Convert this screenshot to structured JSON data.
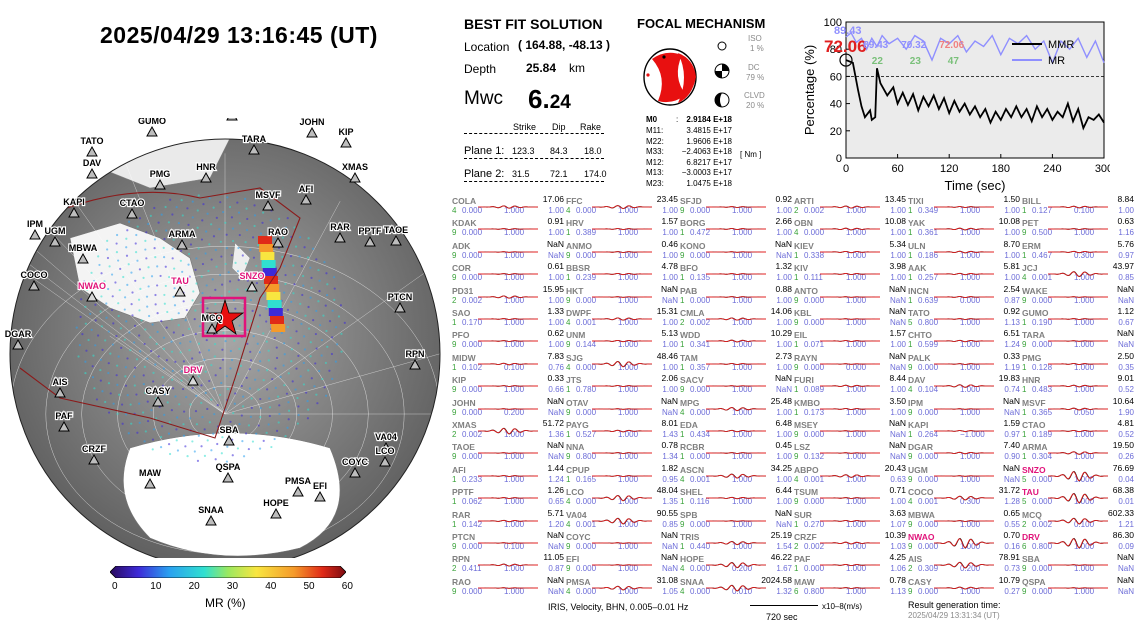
{
  "datetime": "2025/04/29  13:16:45 (UT)",
  "best_fit": {
    "title": "BEST FIT SOLUTION",
    "location_label": "Location",
    "location": "( 164.88,  -48.13 )",
    "depth_label": "Depth",
    "depth": "25.84",
    "depth_unit": "km",
    "mwc_label": "Mwc",
    "mwc_int": "6.",
    "mwc_dec": "24",
    "cols": [
      "Strike",
      "Dip",
      "Rake"
    ],
    "plane1_label": "Plane 1:",
    "plane1": [
      "123.3",
      "84.3",
      "18.0"
    ],
    "plane2_label": "Plane 2:",
    "plane2": [
      "31.5",
      "72.1",
      "174.0"
    ]
  },
  "focal": {
    "title": "FOCAL MECHANISM",
    "iso_label": "ISO",
    "iso": "1 %",
    "dc_label": "DC",
    "dc": "79 %",
    "clvd_label": "CLVD",
    "clvd": "20 %",
    "m0_label": "M0",
    "m0": "2.9184 E+18",
    "moments": [
      [
        "M11:",
        "3.4815 E+17"
      ],
      [
        "M22:",
        "1.9606 E+18"
      ],
      [
        "M33:",
        "−2.4063 E+18"
      ],
      [
        "M12:",
        "6.8217 E+17"
      ],
      [
        "M13:",
        "−3.0003 E+17"
      ],
      [
        "M23:",
        "1.0475 E+18"
      ]
    ],
    "unit": "[ Nm ]"
  },
  "mr_chart": {
    "ylabel": "Percentage (%)",
    "xlabel": "Time (sec)",
    "xticks": [
      "0",
      "60",
      "120",
      "180",
      "240",
      "300"
    ],
    "yticks": [
      "0",
      "20",
      "40",
      "60",
      "80",
      "100"
    ],
    "big_value": "72.06",
    "labels_top": [
      "89.43",
      "70.32",
      "72.06"
    ],
    "labels_top2": [
      "89.43"
    ],
    "labels_green": [
      "22",
      "23",
      "47"
    ],
    "legend": [
      "MMR",
      "MR"
    ],
    "threshold": 60,
    "mmr": [
      [
        0,
        72
      ],
      [
        8,
        70
      ],
      [
        14,
        50
      ],
      [
        18,
        38
      ],
      [
        22,
        30
      ],
      [
        28,
        35
      ],
      [
        30,
        28
      ],
      [
        34,
        30
      ],
      [
        36,
        66
      ],
      [
        40,
        55
      ],
      [
        48,
        46
      ],
      [
        55,
        52
      ],
      [
        60,
        40
      ],
      [
        66,
        48
      ],
      [
        72,
        39
      ],
      [
        78,
        47
      ],
      [
        84,
        35
      ],
      [
        90,
        45
      ],
      [
        96,
        38
      ],
      [
        102,
        46
      ],
      [
        108,
        36
      ],
      [
        114,
        44
      ],
      [
        120,
        33
      ],
      [
        126,
        42
      ],
      [
        132,
        34
      ],
      [
        138,
        40
      ],
      [
        144,
        32
      ],
      [
        150,
        38
      ],
      [
        156,
        30
      ],
      [
        162,
        36
      ],
      [
        168,
        26
      ],
      [
        174,
        34
      ],
      [
        180,
        28
      ],
      [
        186,
        36
      ],
      [
        192,
        30
      ],
      [
        198,
        38
      ],
      [
        204,
        30
      ],
      [
        210,
        36
      ],
      [
        216,
        27
      ],
      [
        222,
        38
      ],
      [
        228,
        30
      ],
      [
        234,
        36
      ],
      [
        240,
        28
      ],
      [
        246,
        34
      ],
      [
        252,
        30
      ],
      [
        258,
        40
      ],
      [
        264,
        27
      ],
      [
        270,
        36
      ],
      [
        276,
        22
      ],
      [
        282,
        30
      ],
      [
        288,
        28
      ],
      [
        294,
        32
      ],
      [
        300,
        26
      ]
    ],
    "mr": [
      [
        0,
        89
      ],
      [
        6,
        92
      ],
      [
        12,
        85
      ],
      [
        18,
        88
      ],
      [
        24,
        80
      ],
      [
        30,
        88
      ],
      [
        36,
        82
      ],
      [
        42,
        90
      ],
      [
        50,
        84
      ],
      [
        60,
        88
      ],
      [
        70,
        80
      ],
      [
        80,
        90
      ],
      [
        90,
        86
      ],
      [
        100,
        72
      ],
      [
        110,
        88
      ],
      [
        120,
        84
      ],
      [
        130,
        90
      ],
      [
        140,
        78
      ],
      [
        150,
        86
      ],
      [
        160,
        82
      ],
      [
        170,
        90
      ],
      [
        180,
        76
      ],
      [
        190,
        88
      ],
      [
        200,
        84
      ],
      [
        210,
        90
      ],
      [
        220,
        80
      ],
      [
        230,
        86
      ],
      [
        240,
        70
      ],
      [
        250,
        86
      ],
      [
        260,
        80
      ],
      [
        270,
        88
      ],
      [
        280,
        74
      ],
      [
        290,
        86
      ],
      [
        300,
        70
      ]
    ]
  },
  "colorbar": {
    "label": "MR (%)",
    "ticks": [
      "0",
      "10",
      "20",
      "30",
      "40",
      "50",
      "60"
    ]
  },
  "footer": {
    "filter": "IRIS,  Velocity,   BHN,  0.005–0.01 Hz",
    "scale": "720 sec",
    "units": "x10–8(m/s)",
    "gen_label": "Result generation time:",
    "gen_time": "2025/04/29  13:31:34 (UT)"
  },
  "globe_stations": [
    [
      "JCJ",
      150,
      118
    ],
    [
      "WAKE",
      232,
      116
    ],
    [
      "MIDW",
      282,
      112
    ],
    [
      "GUMO",
      152,
      132
    ],
    [
      "JOHN",
      312,
      133
    ],
    [
      "KIP",
      346,
      143
    ],
    [
      "TATO",
      92,
      152
    ],
    [
      "TARA",
      254,
      150
    ],
    [
      "DAV",
      92,
      174
    ],
    [
      "XMAS",
      355,
      178
    ],
    [
      "PMG",
      160,
      185
    ],
    [
      "HNR",
      206,
      178
    ],
    [
      "AFI",
      306,
      200
    ],
    [
      "MSVF",
      268,
      206
    ],
    [
      "KAPI",
      74,
      213
    ],
    [
      "CTAO",
      132,
      214
    ],
    [
      "IPM",
      35,
      235
    ],
    [
      "UGM",
      55,
      242
    ],
    [
      "RAR",
      340,
      238
    ],
    [
      "PPTF",
      370,
      242
    ],
    [
      "TAOE",
      396,
      241
    ],
    [
      "MBWA",
      83,
      259
    ],
    [
      "ARMA",
      182,
      245
    ],
    [
      "RAO",
      278,
      243
    ],
    [
      "COCO",
      34,
      286
    ],
    [
      "TAU",
      180,
      292
    ],
    [
      "SNZO",
      252,
      287
    ],
    [
      "NWAO",
      92,
      297
    ],
    [
      "MCQ",
      212,
      329
    ],
    [
      "PTCN",
      400,
      308
    ],
    [
      "DGAR",
      18,
      345
    ],
    [
      "RPN",
      415,
      365
    ],
    [
      "DRV",
      193,
      381
    ],
    [
      "CASY",
      158,
      402
    ],
    [
      "AIS",
      60,
      393
    ],
    [
      "SBA",
      229,
      441
    ],
    [
      "PAF",
      64,
      427
    ],
    [
      "VA04",
      386,
      448
    ],
    [
      "LCO",
      385,
      462
    ],
    [
      "CRZF",
      94,
      460
    ],
    [
      "COYC",
      355,
      473
    ],
    [
      "MAW",
      150,
      484
    ],
    [
      "QSPA",
      228,
      478
    ],
    [
      "PMSA",
      298,
      492
    ],
    [
      "EFI",
      320,
      497
    ],
    [
      "SNAA",
      211,
      521
    ],
    [
      "HOPE",
      276,
      514
    ]
  ],
  "red_stations": [
    "NWAO",
    "TAU",
    "SNZO",
    "DRV"
  ],
  "stations": [
    [
      "COLA",
      "17.06",
      "4",
      "0.000",
      "1.000",
      "1.00"
    ],
    [
      "FFC",
      "23.45",
      "4",
      "0.000",
      "1.000",
      "1.00"
    ],
    [
      "SFJD",
      "0.92",
      "9",
      "0.000",
      "1.000",
      "1.00"
    ],
    [
      "ARTI",
      "13.45",
      "2",
      "0.002",
      "1.000",
      "1.00"
    ],
    [
      "TIXI",
      "1.50",
      "1",
      "0.349",
      "1.000",
      "1.00"
    ],
    [
      "BILL",
      "8.84",
      "1",
      "0.127",
      "0.100",
      "1.00"
    ],
    [
      "KDAK",
      "0.91",
      "9",
      "0.000",
      "1.000",
      "1.00"
    ],
    [
      "HRV",
      "1.57",
      "1",
      "0.389",
      "1.000",
      "1.00"
    ],
    [
      "BORG",
      "2.66",
      "1",
      "0.472",
      "1.000",
      "1.00"
    ],
    [
      "OBN",
      "10.08",
      "4",
      "0.000",
      "1.000",
      "1.00"
    ],
    [
      "YAK",
      "10.08",
      "1",
      "0.361",
      "1.000",
      "1.00"
    ],
    [
      "PET",
      "0.63",
      "9",
      "0.500",
      "1.000",
      "1.16"
    ],
    [
      "ADK",
      "NaN",
      "9",
      "0.000",
      "1.000",
      "NaN"
    ],
    [
      "ANMO",
      "0.46",
      "9",
      "0.000",
      "1.000",
      "1.00"
    ],
    [
      "KONO",
      "NaN",
      "9",
      "0.000",
      "1.000",
      "NaN"
    ],
    [
      "KIEV",
      "5.34",
      "1",
      "0.338",
      "1.000",
      "1.00"
    ],
    [
      "ULN",
      "8.70",
      "1",
      "0.186",
      "1.000",
      "1.00"
    ],
    [
      "ERM",
      "5.76",
      "1",
      "0.467",
      "0.300",
      "0.97"
    ],
    [
      "COR",
      "0.61",
      "9",
      "0.000",
      "1.000",
      "1.00"
    ],
    [
      "BBSR",
      "4.78",
      "1",
      "0.239",
      "1.000",
      "1.00"
    ],
    [
      "BFO",
      "1.32",
      "1",
      "0.135",
      "1.000",
      "1.00"
    ],
    [
      "KIV",
      "3.98",
      "1",
      "0.111",
      "1.000",
      "1.00"
    ],
    [
      "AAK",
      "5.81",
      "1",
      "0.257",
      "1.000",
      "1.00"
    ],
    [
      "JCJ",
      "43.97",
      "4",
      "0.001",
      "1.000",
      "0.85"
    ],
    [
      "PD31",
      "15.95",
      "2",
      "0.002",
      "1.000",
      "1.00"
    ],
    [
      "HKT",
      "NaN",
      "9",
      "0.000",
      "1.000",
      "NaN"
    ],
    [
      "PAB",
      "0.88",
      "1",
      "0.000",
      "1.000",
      "1.00"
    ],
    [
      "ANTO",
      "NaN",
      "9",
      "0.000",
      "1.000",
      "NaN"
    ],
    [
      "INCN",
      "2.54",
      "1",
      "0.639",
      "0.000",
      "0.87"
    ],
    [
      "WAKE",
      "NaN",
      "9",
      "0.000",
      "1.000",
      "NaN"
    ],
    [
      "SAO",
      "1.33",
      "1",
      "0.170",
      "1.000",
      "1.00"
    ],
    [
      "DWPF",
      "15.31",
      "4",
      "0.001",
      "1.000",
      "1.00"
    ],
    [
      "CMLA",
      "14.06",
      "2",
      "0.002",
      "1.000",
      "1.00"
    ],
    [
      "KBL",
      "NaN",
      "9",
      "0.000",
      "1.000",
      "NaN"
    ],
    [
      "TATO",
      "0.92",
      "5",
      "0.800",
      "1.000",
      "1.13"
    ],
    [
      "GUMO",
      "1.12",
      "1",
      "0.190",
      "1.000",
      "0.67"
    ],
    [
      "PFO",
      "0.62",
      "9",
      "0.000",
      "1.000",
      "1.00"
    ],
    [
      "UNM",
      "5.13",
      "9",
      "0.144",
      "1.000",
      "1.00"
    ],
    [
      "WDD",
      "10.29",
      "1",
      "0.341",
      "1.000",
      "1.00"
    ],
    [
      "EIL",
      "1.57",
      "1",
      "0.071",
      "1.000",
      "1.00"
    ],
    [
      "CHTO",
      "6.51",
      "1",
      "0.599",
      "1.000",
      "1.24"
    ],
    [
      "TARA",
      "NaN",
      "9",
      "0.000",
      "1.000",
      "NaN"
    ],
    [
      "MIDW",
      "7.83",
      "1",
      "0.102",
      "0.100",
      "0.76"
    ],
    [
      "SJG",
      "48.46",
      "4",
      "0.000",
      "1.000",
      "1.00"
    ],
    [
      "TAM",
      "2.73",
      "1",
      "0.357",
      "1.000",
      "1.00"
    ],
    [
      "RAYN",
      "NaN",
      "9",
      "0.000",
      "0.000",
      "NaN"
    ],
    [
      "PALK",
      "0.33",
      "9",
      "0.000",
      "1.000",
      "1.19"
    ],
    [
      "PMG",
      "2.50",
      "1",
      "0.128",
      "1.000",
      "0.35"
    ],
    [
      "KIP",
      "0.33",
      "9",
      "0.000",
      "1.000",
      "0.66"
    ],
    [
      "JTS",
      "2.06",
      "1",
      "0.780",
      "1.000",
      "1.00"
    ],
    [
      "SACV",
      "NaN",
      "9",
      "0.000",
      "1.000",
      "NaN"
    ],
    [
      "FURI",
      "8.44",
      "1",
      "0.089",
      "1.000",
      "1.00"
    ],
    [
      "DAV",
      "19.83",
      "4",
      "0.104",
      "1.000",
      "0.74"
    ],
    [
      "HNR",
      "9.01",
      "1",
      "0.483",
      "1.000",
      "0.52"
    ],
    [
      "JOHN",
      "NaN",
      "9",
      "0.000",
      "0.200",
      "NaN"
    ],
    [
      "OTAV",
      "NaN",
      "9",
      "0.000",
      "1.000",
      "NaN"
    ],
    [
      "MPG",
      "25.48",
      "4",
      "0.000",
      "1.000",
      "1.00"
    ],
    [
      "KMBO",
      "3.50",
      "1",
      "0.173",
      "1.000",
      "1.00"
    ],
    [
      "IPM",
      "NaN",
      "9",
      "0.000",
      "1.000",
      "NaN"
    ],
    [
      "MSVF",
      "10.64",
      "1",
      "0.365",
      "0.050",
      "1.90"
    ],
    [
      "XMAS",
      "51.72",
      "2",
      "0.002",
      "1.000",
      "1.36"
    ],
    [
      "PAYG",
      "8.01",
      "1",
      "0.527",
      "1.000",
      "1.43"
    ],
    [
      "EDA",
      "6.48",
      "1",
      "0.434",
      "1.000",
      "1.00"
    ],
    [
      "MSEY",
      "NaN",
      "9",
      "0.000",
      "1.000",
      "NaN"
    ],
    [
      "KAPI",
      "1.59",
      "1",
      "0.264",
      "−1.000",
      "0.97"
    ],
    [
      "CTAO",
      "4.81",
      "1",
      "0.189",
      "1.000",
      "0.52"
    ],
    [
      "TAOE",
      "NaN",
      "9",
      "0.000",
      "1.000",
      "NaN"
    ],
    [
      "NNA",
      "0.78",
      "9",
      "0.800",
      "1.000",
      "1.34"
    ],
    [
      "RCBR",
      "0.45",
      "1",
      "0.000",
      "1.000",
      "1.00"
    ],
    [
      "LSZ",
      "NaN",
      "9",
      "0.132",
      "1.000",
      "NaN"
    ],
    [
      "DGAR",
      "7.40",
      "9",
      "0.000",
      "1.000",
      "0.90"
    ],
    [
      "ARMA",
      "19.50",
      "1",
      "0.304",
      "1.000",
      "0.26"
    ],
    [
      "AFI",
      "1.44",
      "1",
      "0.233",
      "1.000",
      "1.24"
    ],
    [
      "CPUP",
      "1.82",
      "1",
      "0.165",
      "1.000",
      "0.95"
    ],
    [
      "ASCN",
      "34.25",
      "4",
      "0.001",
      "1.000",
      "1.00"
    ],
    [
      "ABPO",
      "20.43",
      "4",
      "0.001",
      "1.000",
      "0.63"
    ],
    [
      "UGM",
      "NaN",
      "9",
      "0.000",
      "1.000",
      "NaN"
    ],
    [
      "SNZO",
      "76.69",
      "5",
      "0.000",
      "1.000",
      "0.04"
    ],
    [
      "PPTF",
      "1.26",
      "1",
      "0.062",
      "1.000",
      "0.65"
    ],
    [
      "LCO",
      "48.04",
      "4",
      "0.000",
      "1.000",
      "1.35"
    ],
    [
      "SHEL",
      "6.44",
      "1",
      "0.116",
      "1.000",
      "1.00"
    ],
    [
      "TSUM",
      "0.71",
      "9",
      "0.000",
      "1.000",
      "1.00"
    ],
    [
      "COCO",
      "31.72",
      "4",
      "0.001",
      "0.300",
      "1.28"
    ],
    [
      "TAU",
      "68.38",
      "5",
      "0.000",
      "1.000",
      "0.01"
    ],
    [
      "RAR",
      "5.71",
      "1",
      "0.142",
      "1.000",
      "1.20"
    ],
    [
      "VA04",
      "90.55",
      "4",
      "0.001",
      "1.000",
      "0.85"
    ],
    [
      "SPB",
      "NaN",
      "9",
      "0.000",
      "1.000",
      "NaN"
    ],
    [
      "SUR",
      "3.63",
      "1",
      "0.270",
      "1.000",
      "1.07"
    ],
    [
      "MBWA",
      "0.65",
      "9",
      "0.000",
      "1.000",
      "0.55"
    ],
    [
      "MCQ",
      "602.33",
      "2",
      "0.002",
      "0.100",
      "1.21"
    ],
    [
      "PTCN",
      "NaN",
      "9",
      "0.000",
      "0.100",
      "NaN"
    ],
    [
      "COYC",
      "NaN",
      "9",
      "0.000",
      "1.000",
      "NaN"
    ],
    [
      "TRIS",
      "25.19",
      "1",
      "0.440",
      "1.000",
      "1.54"
    ],
    [
      "CRZF",
      "10.39",
      "2",
      "0.002",
      "1.000",
      "1.03"
    ],
    [
      "NWAO",
      "0.70",
      "9",
      "0.000",
      "1.000",
      "0.16"
    ],
    [
      "DRV",
      "86.30",
      "6",
      "0.800",
      "1.000",
      "0.09"
    ],
    [
      "RPN",
      "11.05",
      "2",
      "0.411",
      "1.000",
      "0.87"
    ],
    [
      "EFI",
      "NaN",
      "9",
      "0.000",
      "1.000",
      "NaN"
    ],
    [
      "HOPE",
      "46.22",
      "4",
      "0.000",
      "0.200",
      "1.67"
    ],
    [
      "PAF",
      "4.25",
      "1",
      "0.000",
      "1.000",
      "1.06"
    ],
    [
      "AIS",
      "78.91",
      "2",
      "0.309",
      "0.200",
      "0.73"
    ],
    [
      "SBA",
      "NaN",
      "9",
      "0.000",
      "1.000",
      "NaN"
    ],
    [
      "RAO",
      "NaN",
      "9",
      "0.000",
      "1.000",
      "NaN"
    ],
    [
      "PMSA",
      "31.08",
      "4",
      "0.000",
      "1.000",
      "1.05"
    ],
    [
      "SNAA",
      "2024.58",
      "4",
      "0.000",
      "0.010",
      "1.32"
    ],
    [
      "MAW",
      "0.78",
      "6",
      "0.800",
      "1.000",
      "1.13"
    ],
    [
      "CASY",
      "10.79",
      "9",
      "0.000",
      "1.000",
      "0.27"
    ],
    [
      "QSPA",
      "NaN",
      "9",
      "0.000",
      "1.000",
      "NaN"
    ]
  ]
}
